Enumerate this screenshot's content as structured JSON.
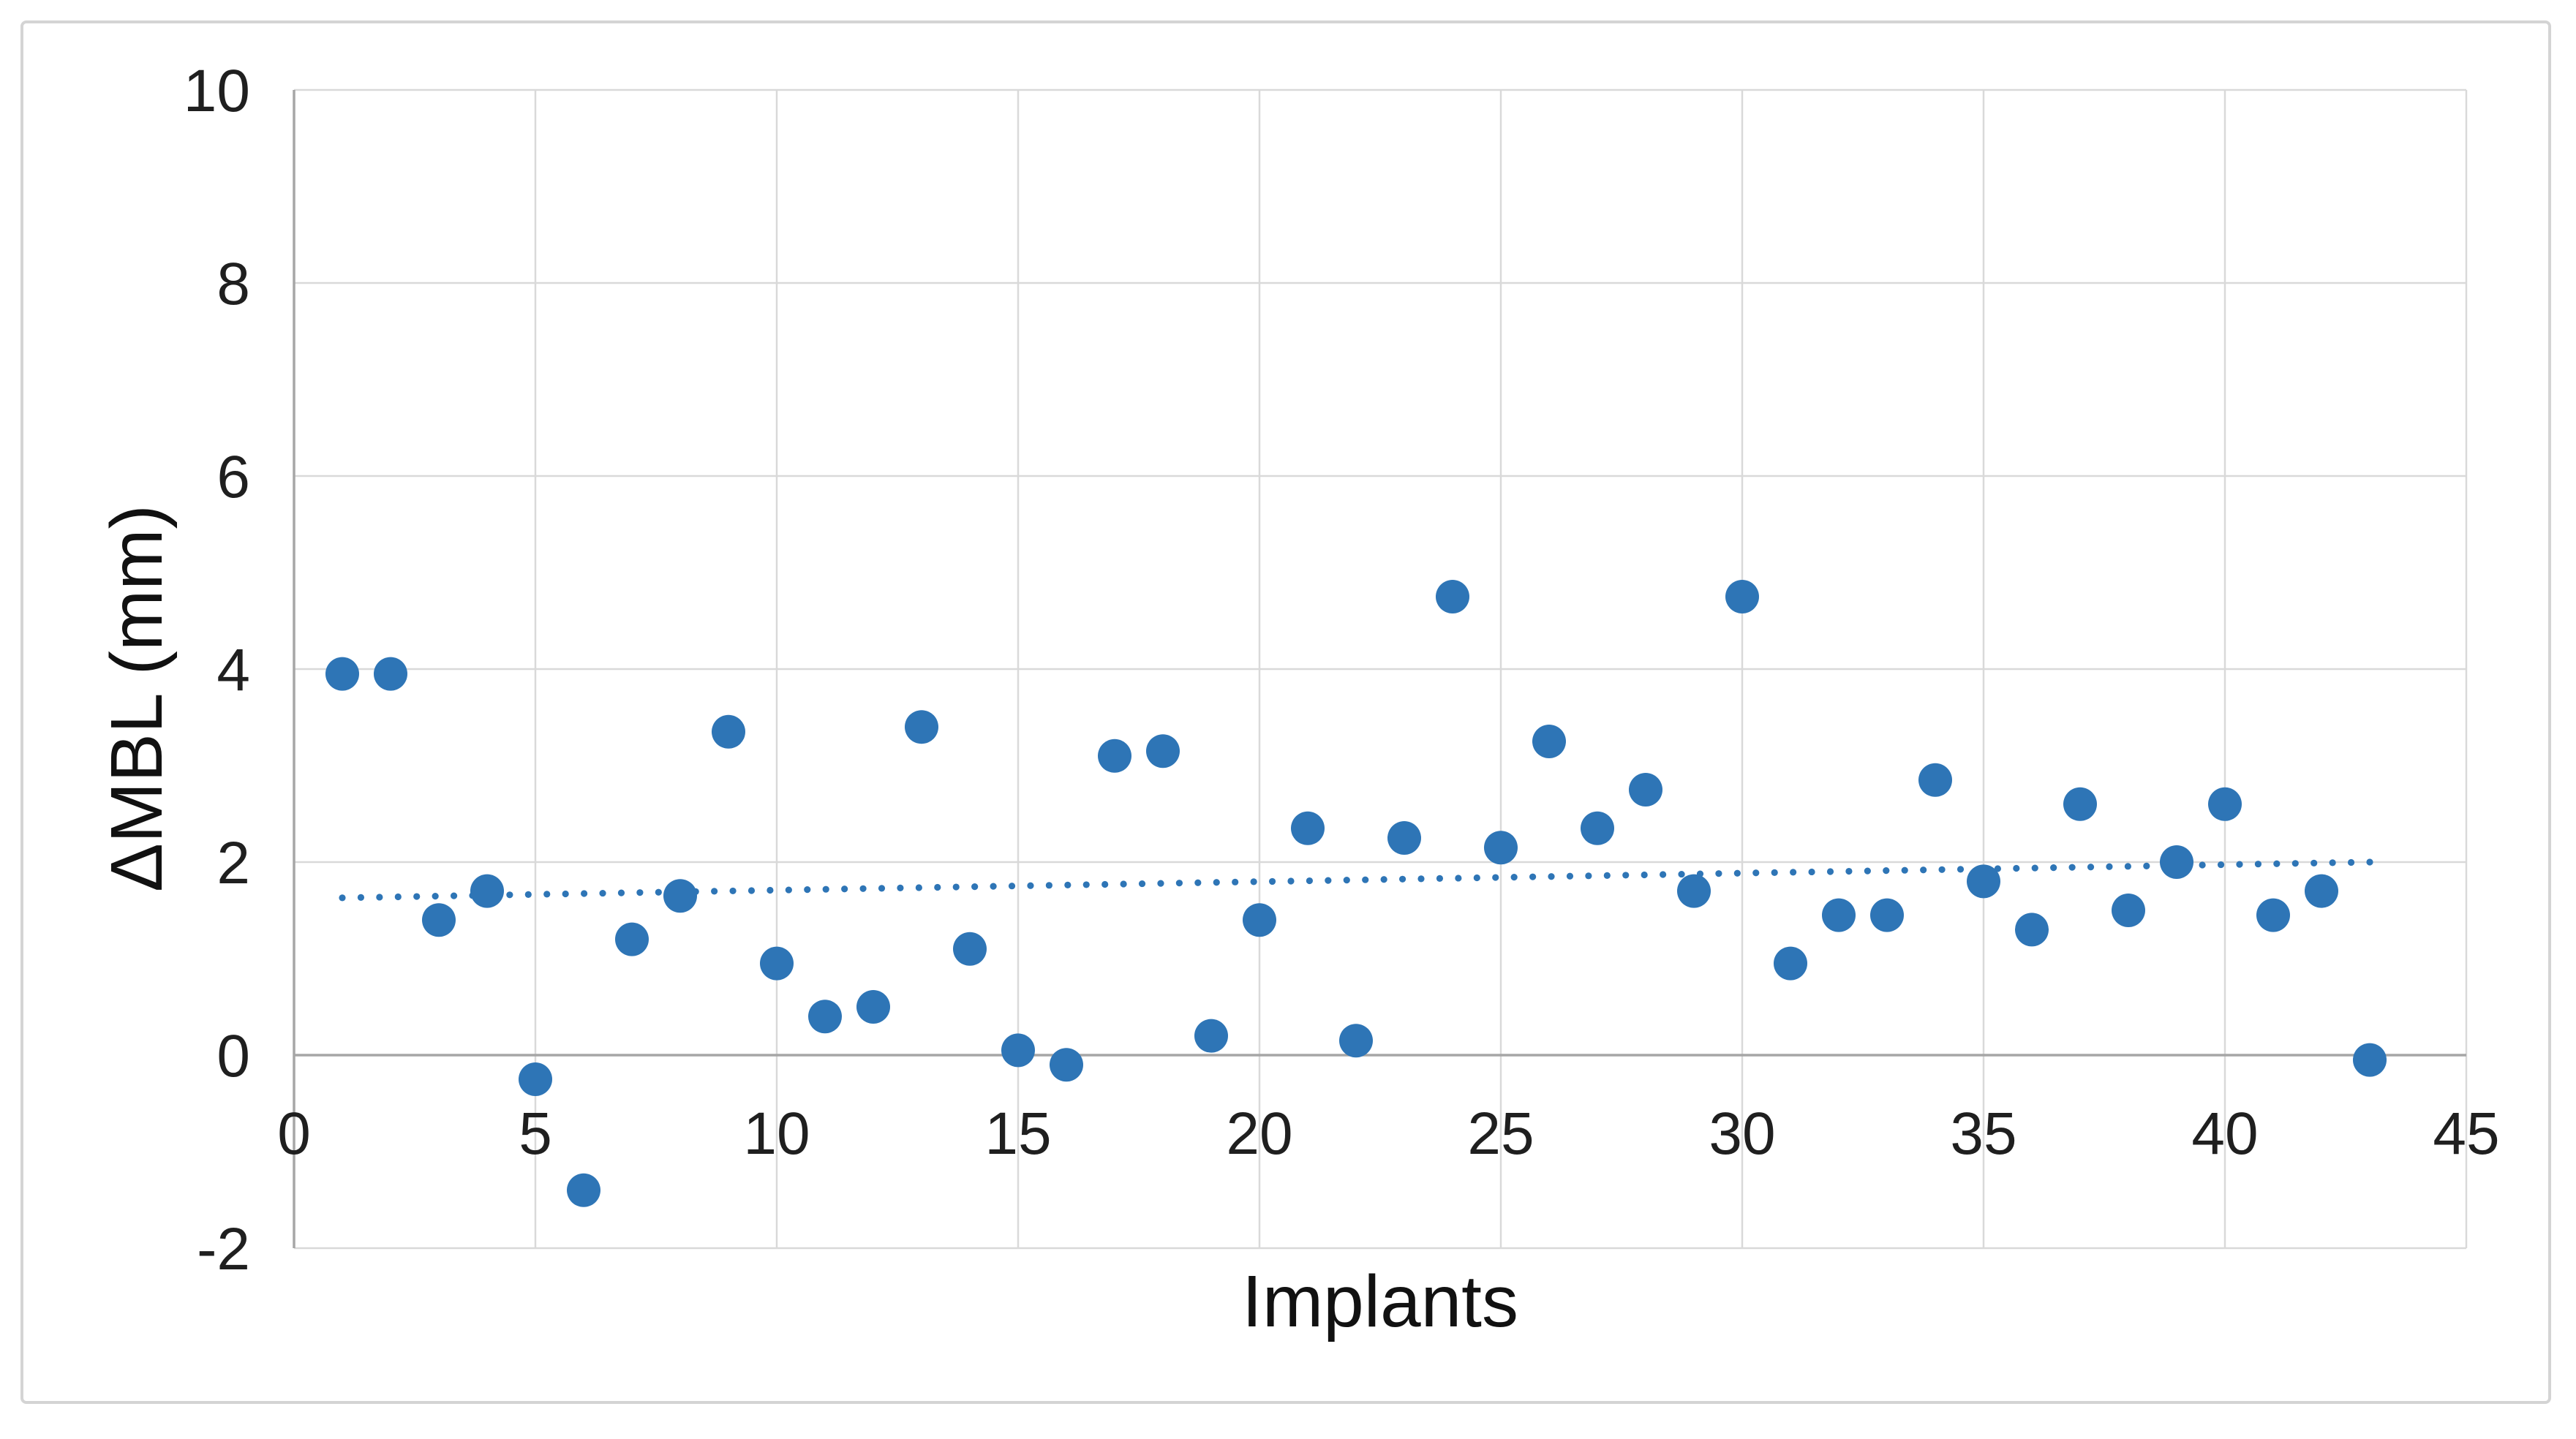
{
  "chart_data": {
    "type": "scatter",
    "title": "",
    "xlabel": "Implants",
    "ylabel": "ΔMBL (mm)",
    "xlim": [
      0,
      45
    ],
    "ylim": [
      -2,
      10
    ],
    "xticks": [
      0,
      5,
      10,
      15,
      20,
      25,
      30,
      35,
      40,
      45
    ],
    "yticks": [
      -2,
      0,
      2,
      4,
      6,
      8,
      10
    ],
    "grid": true,
    "legend": "none",
    "series": [
      {
        "name": "implant-dMBL-points",
        "points": [
          [
            1,
            3.95
          ],
          [
            2,
            3.95
          ],
          [
            3,
            1.4
          ],
          [
            4,
            1.7
          ],
          [
            5,
            -0.25
          ],
          [
            6,
            -1.4
          ],
          [
            7,
            1.2
          ],
          [
            8,
            1.65
          ],
          [
            9,
            3.35
          ],
          [
            10,
            0.95
          ],
          [
            11,
            0.4
          ],
          [
            12,
            0.5
          ],
          [
            13,
            3.4
          ],
          [
            14,
            1.1
          ],
          [
            15,
            0.05
          ],
          [
            16,
            -0.1
          ],
          [
            17,
            3.1
          ],
          [
            18,
            3.15
          ],
          [
            19,
            0.2
          ],
          [
            20,
            1.4
          ],
          [
            21,
            2.35
          ],
          [
            22,
            0.15
          ],
          [
            23,
            2.25
          ],
          [
            24,
            4.75
          ],
          [
            25,
            2.15
          ],
          [
            26,
            3.25
          ],
          [
            27,
            2.35
          ],
          [
            28,
            2.75
          ],
          [
            29,
            1.7
          ],
          [
            30,
            4.75
          ],
          [
            31,
            0.95
          ],
          [
            32,
            1.45
          ],
          [
            33,
            1.45
          ],
          [
            34,
            2.85
          ],
          [
            35,
            1.8
          ],
          [
            36,
            1.3
          ],
          [
            37,
            2.6
          ],
          [
            38,
            1.5
          ],
          [
            39,
            2.0
          ],
          [
            40,
            2.6
          ],
          [
            41,
            1.45
          ],
          [
            42,
            1.7
          ],
          [
            43,
            -0.05
          ]
        ]
      }
    ],
    "trendline": {
      "style": "dotted",
      "x1": 1,
      "y1": 1.63,
      "x2": 43,
      "y2": 2.0
    },
    "colors": {
      "marker": "#2E75B6",
      "trendline": "#2E75B6",
      "gridline": "#D9D9D9",
      "axis_line": "#A6A6A6",
      "tick_text": "#1F1F1F",
      "title_text": "#111111",
      "figure_border": "#D4D4D4",
      "background": "#FFFFFF"
    }
  }
}
